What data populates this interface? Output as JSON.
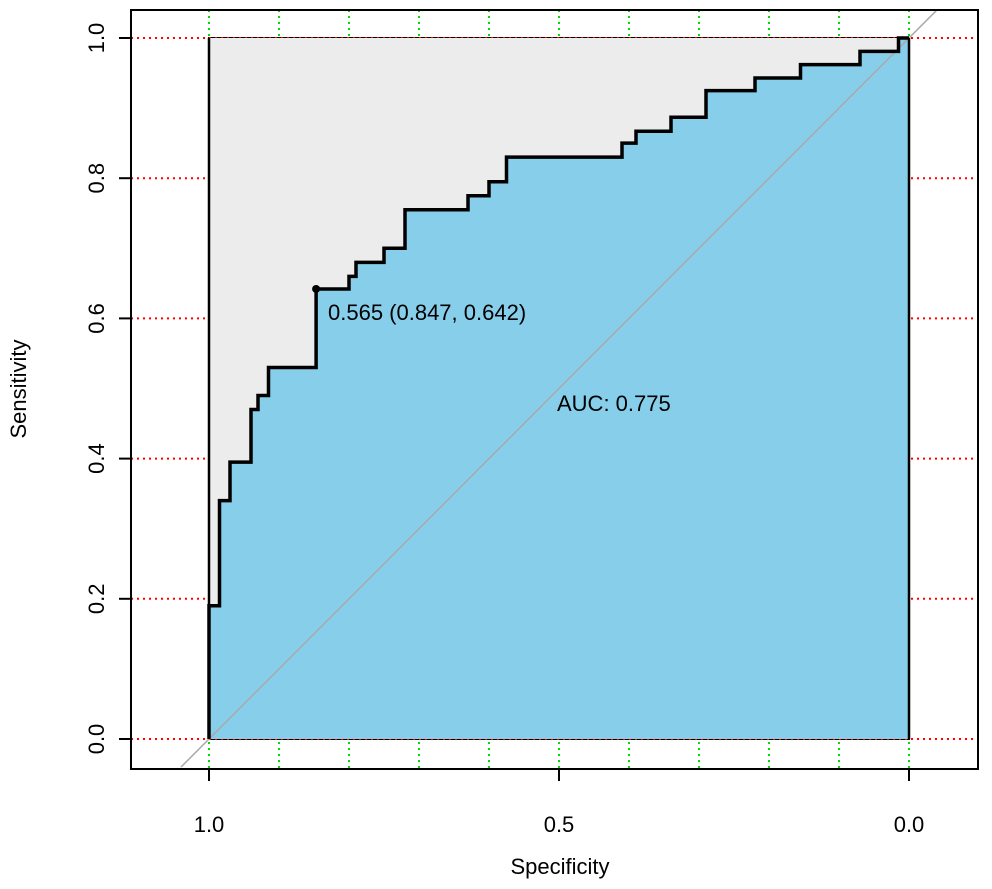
{
  "chart_data": {
    "type": "line",
    "xlabel": "Specificity",
    "ylabel": "Sensitivity",
    "x_axis_reversed": true,
    "xlim": [
      1.0,
      0.0
    ],
    "ylim": [
      0.0,
      1.0
    ],
    "x_ticks": [
      1.0,
      0.5,
      0.0
    ],
    "x_tick_labels": [
      "1.0",
      "0.5",
      "0.0"
    ],
    "y_ticks": [
      0.0,
      0.2,
      0.4,
      0.6,
      0.8,
      1.0
    ],
    "y_tick_labels": [
      "0.0",
      "0.2",
      "0.4",
      "0.6",
      "0.8",
      "1.0"
    ],
    "x_grid": [
      1.0,
      0.9,
      0.8,
      0.7,
      0.6,
      0.5,
      0.4,
      0.3,
      0.2,
      0.1,
      0.0
    ],
    "y_grid": [
      0.0,
      0.2,
      0.4,
      0.6,
      0.8,
      1.0
    ],
    "grid": true,
    "colors": {
      "auc_fill": "#87ceeb",
      "max_auc_fill": "#ececec",
      "roc_line": "#000000",
      "diagonal": "#a9a9a9",
      "grid_x": "#00dd00",
      "grid_y": "#ff0000"
    },
    "series": [
      {
        "x": [
          1.0,
          1.0,
          0.985,
          0.985,
          0.97,
          0.97,
          0.94,
          0.94,
          0.93,
          0.93,
          0.915,
          0.915,
          0.9,
          0.9,
          0.847,
          0.847,
          0.8,
          0.8,
          0.79,
          0.79,
          0.775,
          0.775,
          0.75,
          0.75,
          0.72,
          0.72,
          0.63,
          0.63,
          0.6,
          0.6,
          0.575,
          0.575,
          0.545,
          0.545,
          0.41,
          0.41,
          0.39,
          0.39,
          0.37,
          0.37,
          0.34,
          0.34,
          0.29,
          0.29,
          0.22,
          0.22,
          0.155,
          0.155,
          0.07,
          0.07,
          0.015,
          0.015,
          0.0,
          0.0
        ],
        "y": [
          0.0,
          0.19,
          0.19,
          0.34,
          0.34,
          0.395,
          0.395,
          0.47,
          0.47,
          0.49,
          0.49,
          0.53,
          0.53,
          0.53,
          0.53,
          0.642,
          0.642,
          0.66,
          0.66,
          0.68,
          0.68,
          0.68,
          0.68,
          0.7,
          0.7,
          0.755,
          0.755,
          0.775,
          0.775,
          0.795,
          0.795,
          0.83,
          0.83,
          0.83,
          0.83,
          0.85,
          0.85,
          0.867,
          0.867,
          0.867,
          0.867,
          0.887,
          0.887,
          0.925,
          0.925,
          0.943,
          0.943,
          0.962,
          0.962,
          0.981,
          0.981,
          1.0,
          1.0,
          0.0
        ]
      }
    ],
    "best_threshold": {
      "threshold": 0.565,
      "specificity": 0.847,
      "sensitivity": 0.642
    },
    "annotations": {
      "threshold_label": "0.565 (0.847, 0.642)",
      "auc_label": "AUC: 0.775"
    }
  }
}
